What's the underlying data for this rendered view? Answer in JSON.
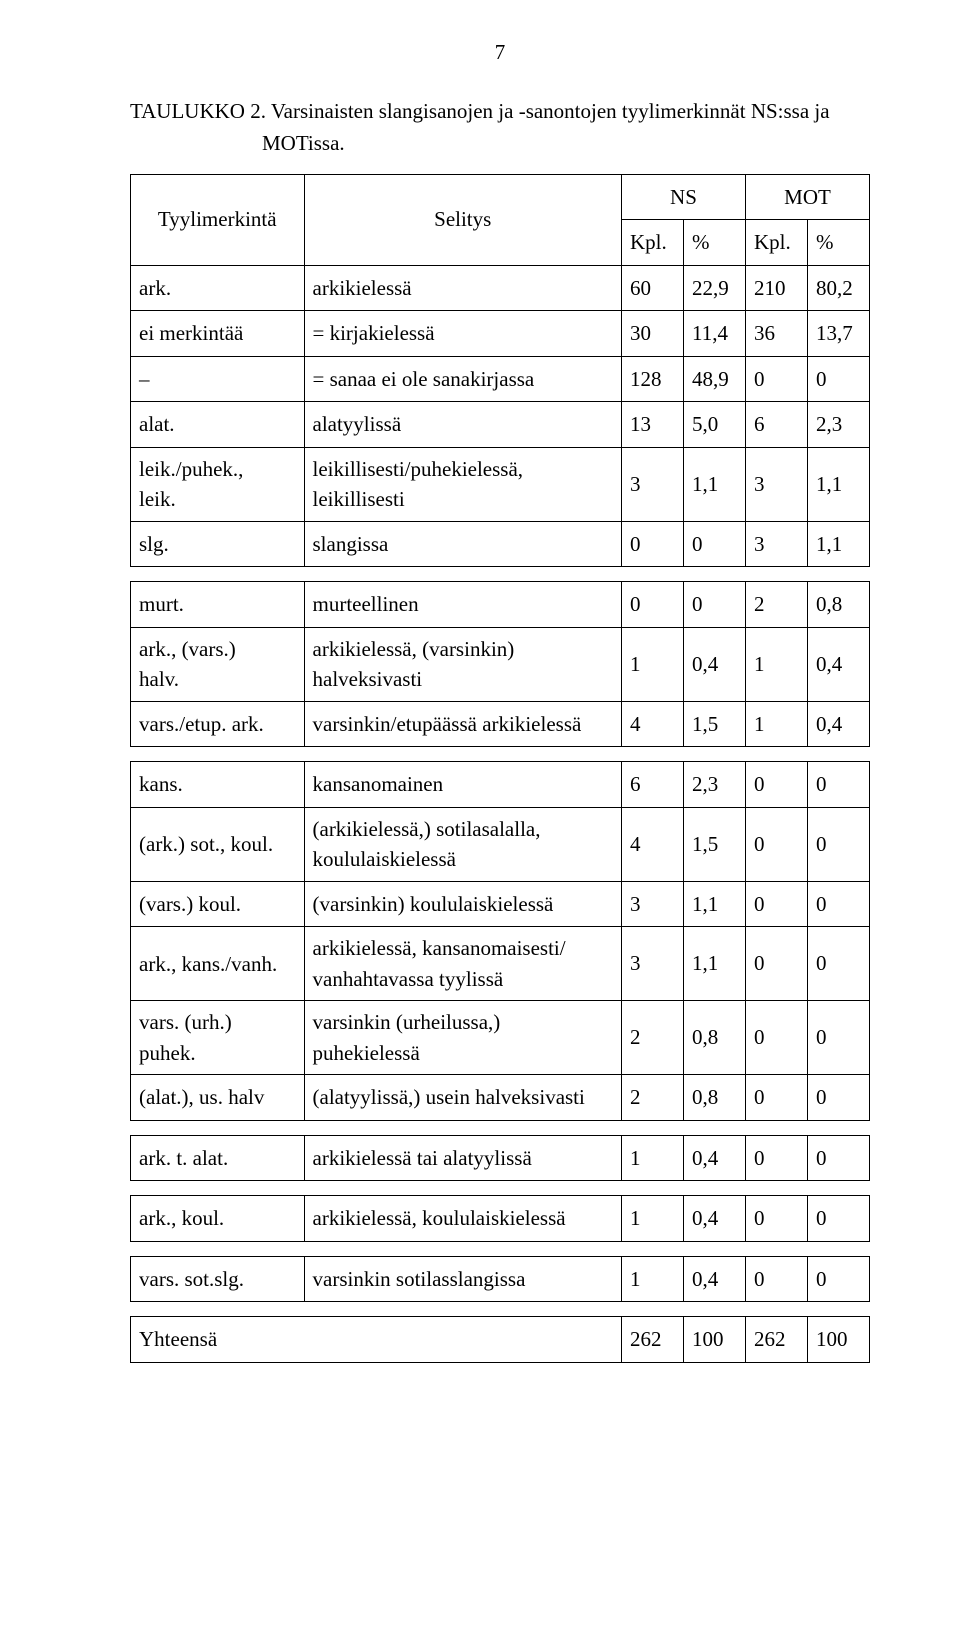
{
  "page_number": "7",
  "caption_line1": "TAULUKKO 2. Varsinaisten slangisanojen ja -sanontojen tyylimerkinnät NS:ssa ja",
  "caption_line2": "MOTissa.",
  "headers": {
    "tyylimerkinta": "Tyylimerkintä",
    "selitys": "Selitys",
    "ns": "NS",
    "mot": "MOT",
    "kpl": "Kpl.",
    "pct": "%"
  },
  "groups": [
    {
      "rows": [
        {
          "label": "ark.",
          "selitys": "arkikielessä",
          "c": [
            "60",
            "22,9",
            "210",
            "80,2"
          ]
        },
        {
          "label": "ei merkintää",
          "selitys": "= kirjakielessä",
          "c": [
            "30",
            "11,4",
            "36",
            "13,7"
          ]
        },
        {
          "label": "–",
          "selitys": "= sanaa ei ole sanakirjassa",
          "c": [
            "128",
            "48,9",
            "0",
            "0"
          ]
        },
        {
          "label": "alat.",
          "selitys": "alatyylissä",
          "c": [
            "13",
            "5,0",
            "6",
            "2,3"
          ]
        },
        {
          "label": "leik./puhek.,\nleik.",
          "selitys": "leikillisesti/puhekielessä,\nleikillisesti",
          "c": [
            "3",
            "1,1",
            "3",
            "1,1"
          ],
          "twoline": true
        },
        {
          "label": "slg.",
          "selitys": "slangissa",
          "c": [
            "0",
            "0",
            "3",
            "1,1"
          ]
        }
      ]
    },
    {
      "rows": [
        {
          "label": "murt.",
          "selitys": "murteellinen",
          "c": [
            "0",
            "0",
            "2",
            "0,8"
          ]
        },
        {
          "label": "ark., (vars.)\nhalv.",
          "selitys": "arkikielessä, (varsinkin)\nhalveksivasti",
          "c": [
            "1",
            "0,4",
            "1",
            "0,4"
          ],
          "twoline": true
        },
        {
          "label": "vars./etup. ark.",
          "selitys": "varsinkin/etupäässä arkikielessä",
          "c": [
            "4",
            "1,5",
            "1",
            "0,4"
          ]
        }
      ]
    },
    {
      "rows": [
        {
          "label": "kans.",
          "selitys": "kansanomainen",
          "c": [
            "6",
            "2,3",
            "0",
            "0"
          ]
        },
        {
          "label": "(ark.) sot., koul.",
          "selitys": "(arkikielessä,) sotilasalalla,\nkoululaiskielessä",
          "c": [
            "4",
            "1,5",
            "0",
            "0"
          ],
          "twoline": true
        },
        {
          "label": "(vars.) koul.",
          "selitys": "(varsinkin) koululaiskielessä",
          "c": [
            "3",
            "1,1",
            "0",
            "0"
          ]
        },
        {
          "label": "ark., kans./vanh.",
          "selitys": "arkikielessä, kansanomaisesti/\nvanhahtavassa tyylissä",
          "c": [
            "3",
            "1,1",
            "0",
            "0"
          ],
          "twoline": true
        },
        {
          "label": "vars. (urh.)\npuhek.",
          "selitys": "varsinkin (urheilussa,)\npuhekielessä",
          "c": [
            "2",
            "0,8",
            "0",
            "0"
          ],
          "twoline": true
        },
        {
          "label": "(alat.), us. halv",
          "selitys": "(alatyylissä,) usein halveksivasti",
          "c": [
            "2",
            "0,8",
            "0",
            "0"
          ]
        }
      ]
    },
    {
      "rows": [
        {
          "label": "ark. t. alat.",
          "selitys": "arkikielessä tai alatyylissä",
          "c": [
            "1",
            "0,4",
            "0",
            "0"
          ]
        }
      ]
    },
    {
      "rows": [
        {
          "label": "ark., koul.",
          "selitys": "arkikielessä, koululaiskielessä",
          "c": [
            "1",
            "0,4",
            "0",
            "0"
          ]
        }
      ]
    },
    {
      "rows": [
        {
          "label": "vars. sot.slg.",
          "selitys": "varsinkin sotilasslangissa",
          "c": [
            "1",
            "0,4",
            "0",
            "0"
          ]
        }
      ]
    },
    {
      "rows": [
        {
          "label": "Yhteensä",
          "selitys": "",
          "c": [
            "262",
            "100",
            "262",
            "100"
          ],
          "merge_first_two": true
        }
      ]
    }
  ]
}
